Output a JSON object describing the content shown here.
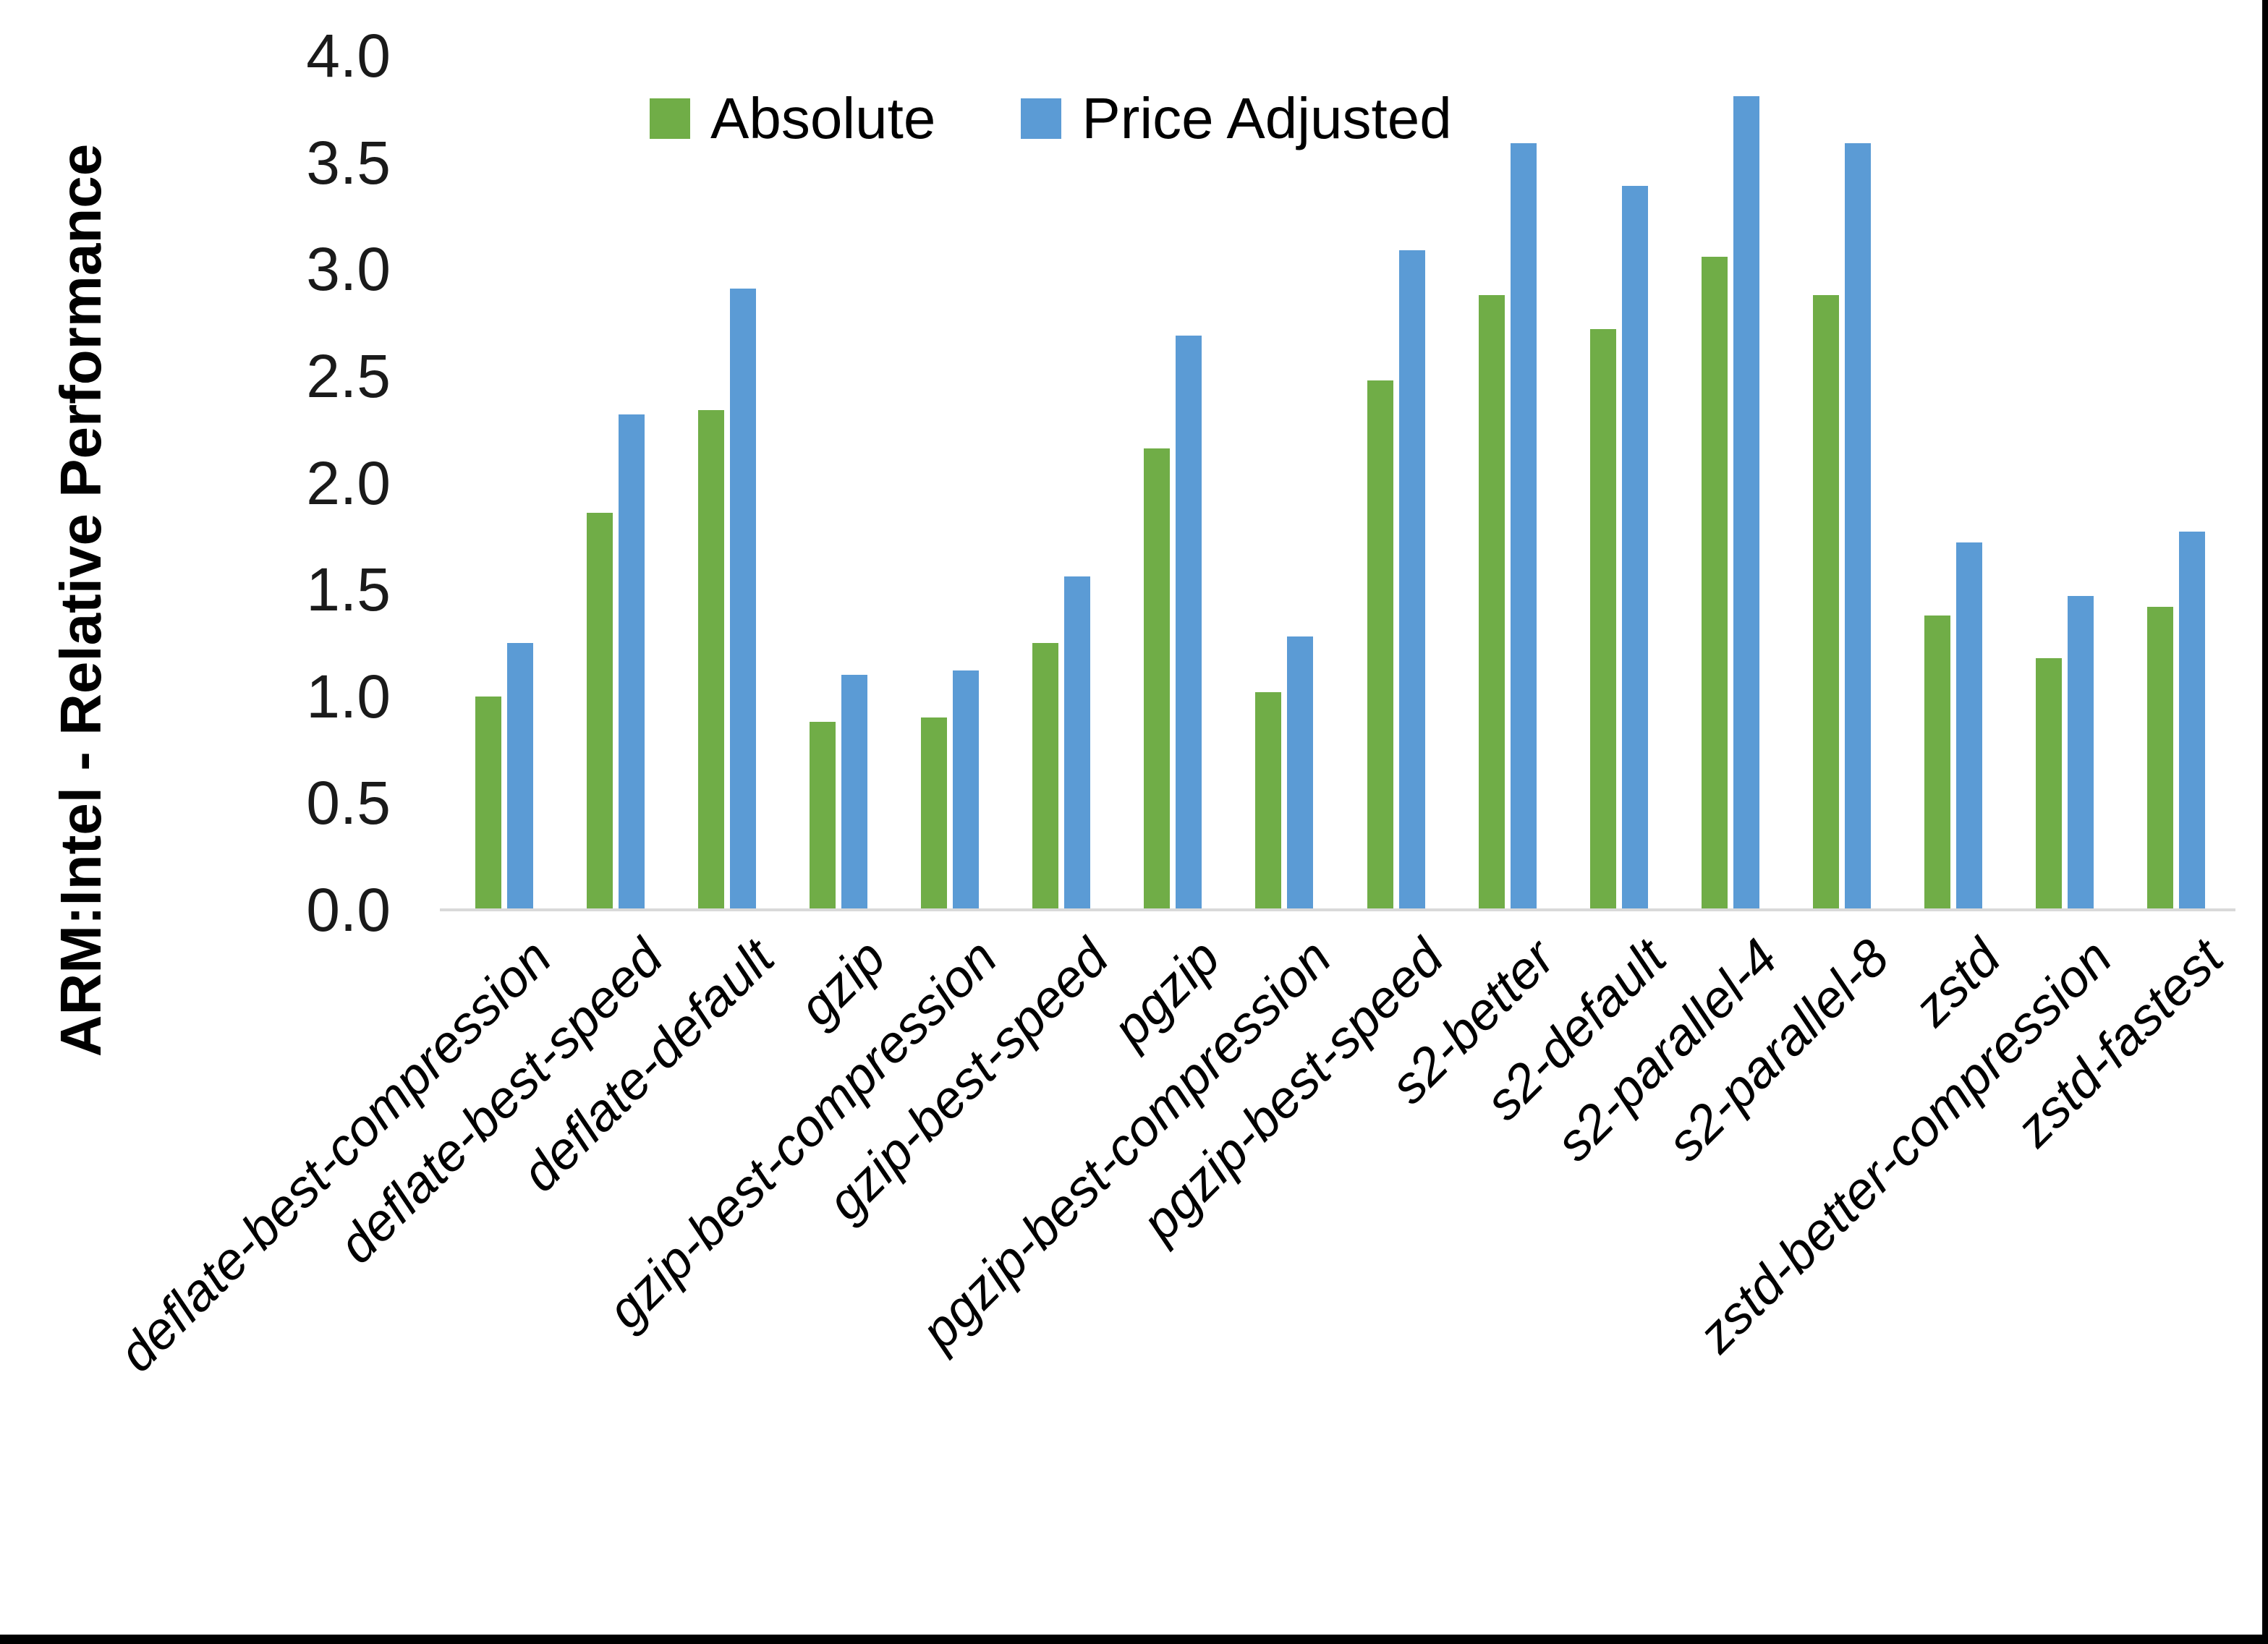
{
  "chart_data": {
    "type": "bar",
    "title": "",
    "xlabel": "",
    "ylabel": "ARM:Intel - Relative Performance",
    "ylim": [
      0,
      4
    ],
    "ytick_step": 0.5,
    "ytick_labels": [
      "4.0",
      "3.5",
      "3.0",
      "2.5",
      "2.0",
      "1.5",
      "1.0",
      "0.5",
      "0.0"
    ],
    "grid": false,
    "legend_position": "top-center",
    "categories": [
      "deflate-best-compression",
      "deflate-best-speed",
      "deflate-default",
      "gzip",
      "gzip-best-compression",
      "gzip-best-speed",
      "pgzip",
      "pgzip-best-compression",
      "pgzip-best-speed",
      "s2-better",
      "s2-default",
      "s2-parallel-4",
      "s2-parallel-8",
      "zstd",
      "zstd-better-compression",
      "zstd-fastest"
    ],
    "series": [
      {
        "name": "Absolute",
        "color": "#70AD47",
        "values": [
          1.0,
          1.86,
          2.34,
          0.88,
          0.9,
          1.25,
          2.16,
          1.02,
          2.48,
          2.88,
          2.72,
          3.06,
          2.88,
          1.38,
          1.18,
          1.42
        ]
      },
      {
        "name": "Price Adjusted",
        "color": "#5B9BD5",
        "values": [
          1.25,
          2.32,
          2.91,
          1.1,
          1.12,
          1.56,
          2.69,
          1.28,
          3.09,
          3.59,
          3.39,
          3.81,
          3.59,
          1.72,
          1.47,
          1.77
        ]
      }
    ]
  },
  "colors": {
    "background": "#FFFFFF",
    "axis_line": "#D9D9D9",
    "text": "#000000",
    "window_border": "#000000"
  }
}
